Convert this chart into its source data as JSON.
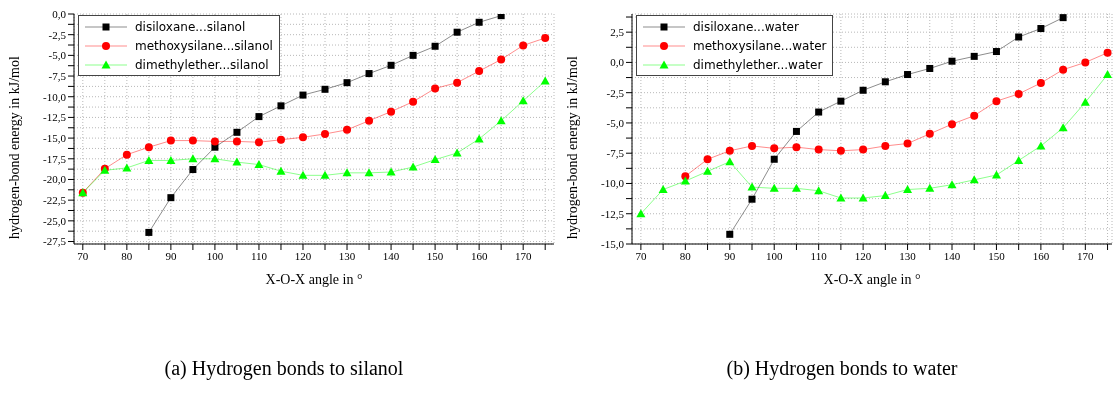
{
  "chart_data": [
    {
      "type": "line",
      "title": "(a) Hydrogen bonds to silanol",
      "xlabel": "X-O-X angle in °",
      "ylabel": "hydrogen-bond energy in kJ/mol",
      "legend": "top left",
      "grid": true,
      "line_style": "solid",
      "x": [
        70,
        75,
        80,
        85,
        90,
        95,
        100,
        105,
        110,
        115,
        120,
        125,
        130,
        135,
        140,
        145,
        150,
        155,
        160,
        165,
        170,
        175
      ],
      "xlim": [
        68,
        177
      ],
      "xticks": [
        70,
        {
          "value": 75,
          "label": null
        },
        80,
        {
          "value": 85,
          "label": null
        },
        90,
        {
          "value": 95,
          "label": null
        },
        100,
        {
          "value": 105,
          "label": null
        },
        110,
        {
          "value": 115,
          "label": null
        },
        120,
        {
          "value": 125,
          "label": null
        },
        130,
        {
          "value": 135,
          "label": null
        },
        140,
        {
          "value": 145,
          "label": null
        },
        150,
        {
          "value": 155,
          "label": null
        },
        160,
        {
          "value": 165,
          "label": null
        },
        170,
        {
          "value": 175,
          "label": null
        }
      ],
      "ylim": [
        -27.8,
        0
      ],
      "yticks": [
        {
          "value": 0,
          "label": "0,0"
        },
        {
          "value": -1.25,
          "label": null
        },
        {
          "value": -2.5,
          "label": "-2,5"
        },
        {
          "value": -3.75,
          "label": null
        },
        {
          "value": -5,
          "label": "-5,0"
        },
        {
          "value": -6.25,
          "label": null
        },
        {
          "value": -7.5,
          "label": "-7,5"
        },
        {
          "value": -8.75,
          "label": null
        },
        {
          "value": -10,
          "label": "-10,0"
        },
        {
          "value": -11.25,
          "label": null
        },
        {
          "value": -12.5,
          "label": "-12,5"
        },
        {
          "value": -13.75,
          "label": null
        },
        {
          "value": -15,
          "label": "-15,0"
        },
        {
          "value": -16.25,
          "label": null
        },
        {
          "value": -17.5,
          "label": "-17,5"
        },
        {
          "value": -18.75,
          "label": null
        },
        {
          "value": -20,
          "label": "-20,0"
        },
        {
          "value": -21.25,
          "label": null
        },
        {
          "value": -22.5,
          "label": "-22,5"
        },
        {
          "value": -23.75,
          "label": null
        },
        {
          "value": -25,
          "label": "-25,0"
        },
        {
          "value": -26.25,
          "label": null
        },
        {
          "value": -27.5,
          "label": "-27,5"
        }
      ],
      "series": [
        {
          "name": "disiloxane...silanol",
          "color": "#000000",
          "marker": "square",
          "values": [
            null,
            null,
            null,
            -26.4,
            -22.2,
            -18.8,
            -16.1,
            -14.3,
            -12.4,
            -11.1,
            -9.8,
            -9.1,
            -8.3,
            -7.2,
            -6.2,
            -5.0,
            -3.9,
            -2.2,
            -1.0,
            -0.2,
            null,
            null
          ]
        },
        {
          "name": "methoxysilane...silanol",
          "color": "#ff0000",
          "marker": "circle",
          "values": [
            -21.6,
            -18.7,
            -17.0,
            -16.1,
            -15.3,
            -15.3,
            -15.4,
            -15.4,
            -15.5,
            -15.2,
            -14.9,
            -14.5,
            -14.0,
            -12.9,
            -11.8,
            -10.6,
            -9.0,
            -8.3,
            -6.9,
            -5.5,
            -3.8,
            -2.9
          ]
        },
        {
          "name": "dimethylether...silanol",
          "color": "#00ff00",
          "marker": "triangle",
          "values": [
            -21.6,
            -18.9,
            -18.6,
            -17.7,
            -17.7,
            -17.5,
            -17.5,
            -17.9,
            -18.2,
            -19.0,
            -19.5,
            -19.5,
            -19.2,
            -19.2,
            -19.1,
            -18.5,
            -17.6,
            -16.8,
            -15.1,
            -12.9,
            -10.5,
            -8.1
          ]
        }
      ]
    },
    {
      "type": "line",
      "title": "(b) Hydrogen bonds to water",
      "xlabel": "X-O-X angle in °",
      "ylabel": "hydrogen-bond energy in kJ/mol",
      "legend": "top left",
      "grid": true,
      "line_style": "solid",
      "x": [
        70,
        75,
        80,
        85,
        90,
        95,
        100,
        105,
        110,
        115,
        120,
        125,
        130,
        135,
        140,
        145,
        150,
        155,
        160,
        165,
        170,
        175
      ],
      "xlim": [
        68,
        176
      ],
      "xticks": [
        70,
        {
          "value": 75,
          "label": null
        },
        80,
        {
          "value": 85,
          "label": null
        },
        90,
        {
          "value": 95,
          "label": null
        },
        100,
        {
          "value": 105,
          "label": null
        },
        110,
        {
          "value": 115,
          "label": null
        },
        120,
        {
          "value": 125,
          "label": null
        },
        130,
        {
          "value": 135,
          "label": null
        },
        140,
        {
          "value": 145,
          "label": null
        },
        150,
        {
          "value": 155,
          "label": null
        },
        160,
        {
          "value": 165,
          "label": null
        },
        170,
        {
          "value": 175,
          "label": null
        }
      ],
      "ylim": [
        -15,
        4
      ],
      "yticks": [
        {
          "value": -15,
          "label": "-15,0"
        },
        {
          "value": -13.75,
          "label": null
        },
        {
          "value": -12.5,
          "label": "-12,5"
        },
        {
          "value": -11.25,
          "label": null
        },
        {
          "value": -10,
          "label": "-10,0"
        },
        {
          "value": -8.75,
          "label": null
        },
        {
          "value": -7.5,
          "label": "-7,5"
        },
        {
          "value": -6.25,
          "label": null
        },
        {
          "value": -5,
          "label": "-5,0"
        },
        {
          "value": -3.75,
          "label": null
        },
        {
          "value": -2.5,
          "label": "-2,5"
        },
        {
          "value": -1.25,
          "label": null
        },
        {
          "value": 0,
          "label": "0,0"
        },
        {
          "value": 1.25,
          "label": null
        },
        {
          "value": 2.5,
          "label": "2,5"
        },
        {
          "value": 3.75,
          "label": null
        }
      ],
      "series": [
        {
          "name": "disiloxane...water",
          "color": "#000000",
          "marker": "square",
          "values": [
            null,
            null,
            null,
            null,
            -14.2,
            -11.3,
            -8.0,
            -5.7,
            -4.1,
            -3.2,
            -2.3,
            -1.6,
            -1.0,
            -0.5,
            0.1,
            0.5,
            0.9,
            2.1,
            2.8,
            3.7,
            null,
            null
          ]
        },
        {
          "name": "methoxysilane...water",
          "color": "#ff0000",
          "marker": "circle",
          "values": [
            null,
            null,
            -9.4,
            -8.0,
            -7.3,
            -6.9,
            -7.1,
            -7.0,
            -7.2,
            -7.3,
            -7.2,
            -6.9,
            -6.7,
            -5.9,
            -5.1,
            -4.4,
            -3.2,
            -2.6,
            -1.7,
            -0.6,
            0.0,
            0.8
          ]
        },
        {
          "name": "dimethylether...water",
          "color": "#00ff00",
          "marker": "triangle",
          "values": [
            -12.5,
            -10.5,
            -9.8,
            -9.0,
            -8.2,
            -10.3,
            -10.4,
            -10.4,
            -10.6,
            -11.2,
            -11.2,
            -11.0,
            -10.5,
            -10.4,
            -10.1,
            -9.7,
            -9.3,
            -8.1,
            -6.9,
            -5.4,
            -3.3,
            -1.0
          ]
        }
      ]
    }
  ]
}
